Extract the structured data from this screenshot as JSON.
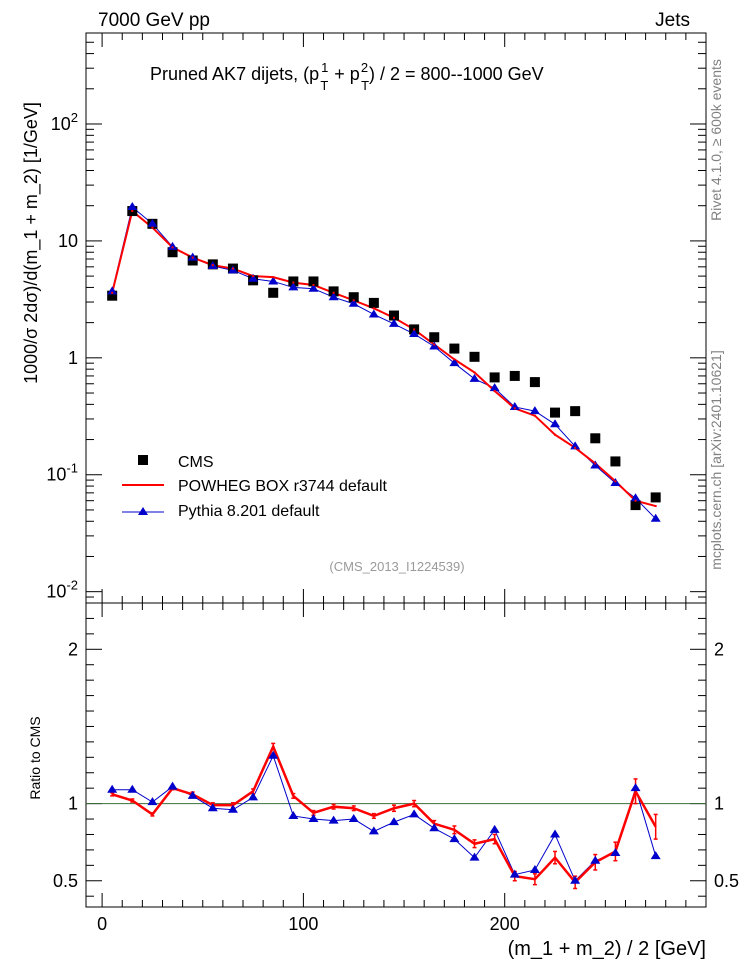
{
  "header": {
    "left_label": "7000 GeV pp",
    "right_label": "Jets"
  },
  "side_labels": {
    "rivet": "Rivet 4.1.0, ≥ 600k events",
    "mcplots": "mcplots.cern.ch [arXiv:2401.10621]"
  },
  "watermark": "(CMS_2013_I1224539)",
  "chart_data": [
    {
      "type": "scatter",
      "panel": "main",
      "title": "Pruned AK7 dijets, (p_T^1 + p_T^2) / 2 = 800--1000 GeV",
      "title_parts": {
        "prefix": "Pruned AK7 dijets, (p",
        "sup1": "1",
        "sub1": "T",
        "mid": "+ p",
        "sup2": "2",
        "sub2": "T",
        "suffix": ") / 2 = 800--1000 GeV"
      },
      "ylabel": "1000/σ   2dσ)/d(m_1 + m_2) [1/GeV]",
      "yscale": "log",
      "ylim": [
        0.008,
        600
      ],
      "xlim": [
        -8,
        300
      ],
      "y_tick_labels": [
        {
          "base": "10",
          "exp": "-2",
          "value": 0.01
        },
        {
          "base": "10",
          "exp": "-1",
          "value": 0.1
        },
        {
          "base": "1",
          "exp": "",
          "value": 1
        },
        {
          "base": "10",
          "exp": "",
          "value": 10
        },
        {
          "base": "10",
          "exp": "2",
          "value": 100
        }
      ],
      "legend_position": "bottom-left",
      "x": [
        5,
        15,
        25,
        35,
        45,
        55,
        65,
        75,
        85,
        95,
        105,
        115,
        125,
        135,
        145,
        155,
        165,
        175,
        185,
        195,
        205,
        215,
        225,
        235,
        245,
        255,
        265,
        275
      ],
      "series": [
        {
          "name": "CMS",
          "marker": "square",
          "color": "#000000",
          "values": [
            3.4,
            18.0,
            14.0,
            8.0,
            6.8,
            6.3,
            5.8,
            4.6,
            3.6,
            4.5,
            4.5,
            3.7,
            3.3,
            2.95,
            2.3,
            1.75,
            1.5,
            1.2,
            1.02,
            0.68,
            0.7,
            0.62,
            0.34,
            0.35,
            0.205,
            0.13,
            0.055,
            0.064
          ]
        },
        {
          "name": "POWHEG BOX r3744 default",
          "marker": "line",
          "color": "#ff0000",
          "values": [
            3.6,
            18.0,
            13.0,
            8.8,
            7.2,
            6.2,
            5.8,
            5.0,
            4.9,
            4.4,
            4.2,
            3.6,
            3.1,
            2.65,
            2.2,
            1.75,
            1.3,
            0.97,
            0.75,
            0.52,
            0.37,
            0.32,
            0.22,
            0.17,
            0.125,
            0.088,
            0.06,
            0.054
          ]
        },
        {
          "name": "Pythia 8.201 default",
          "marker": "triangle",
          "color": "#0000cc",
          "values": [
            3.7,
            19.5,
            14.0,
            8.9,
            7.2,
            6.1,
            5.6,
            4.75,
            4.5,
            4.0,
            3.9,
            3.3,
            2.9,
            2.35,
            1.95,
            1.6,
            1.25,
            0.9,
            0.66,
            0.55,
            0.38,
            0.35,
            0.27,
            0.175,
            0.12,
            0.085,
            0.063,
            0.042
          ]
        }
      ]
    },
    {
      "type": "scatter",
      "panel": "ratio",
      "xlabel": "(m_1 + m_2) / 2 [GeV]",
      "ylabel": "Ratio to CMS",
      "ylim": [
        0.33,
        2.3
      ],
      "xlim": [
        -8,
        300
      ],
      "x_tick_labels": [
        "0",
        "100",
        "200"
      ],
      "y_tick_labels": [
        "0.5",
        "1",
        "2"
      ],
      "reference_value": 1,
      "x": [
        5,
        15,
        25,
        35,
        45,
        55,
        65,
        75,
        85,
        95,
        105,
        115,
        125,
        135,
        145,
        155,
        165,
        175,
        185,
        195,
        205,
        215,
        225,
        235,
        245,
        255,
        265,
        275
      ],
      "series": [
        {
          "name": "POWHEG BOX r3744 default",
          "color": "#ff0000",
          "values": [
            1.06,
            1.02,
            0.93,
            1.1,
            1.06,
            0.99,
            0.99,
            1.08,
            1.37,
            1.05,
            0.94,
            0.98,
            0.97,
            0.92,
            0.97,
            1.0,
            0.87,
            0.83,
            0.74,
            0.77,
            0.53,
            0.51,
            0.65,
            0.49,
            0.62,
            0.69,
            1.08,
            0.85
          ],
          "errors": [
            0.01,
            0.01,
            0.01,
            0.01,
            0.015,
            0.015,
            0.015,
            0.015,
            0.02,
            0.015,
            0.015,
            0.015,
            0.015,
            0.015,
            0.02,
            0.02,
            0.02,
            0.025,
            0.025,
            0.03,
            0.03,
            0.035,
            0.04,
            0.04,
            0.05,
            0.06,
            0.08,
            0.08
          ]
        },
        {
          "name": "Pythia 8.201 default",
          "color": "#0000cc",
          "values": [
            1.09,
            1.09,
            1.01,
            1.11,
            1.05,
            0.97,
            0.96,
            1.04,
            1.31,
            0.92,
            0.9,
            0.89,
            0.9,
            0.82,
            0.88,
            0.93,
            0.84,
            0.77,
            0.65,
            0.83,
            0.54,
            0.57,
            0.8,
            0.5,
            0.63,
            0.68,
            1.1,
            0.66
          ]
        }
      ]
    }
  ]
}
